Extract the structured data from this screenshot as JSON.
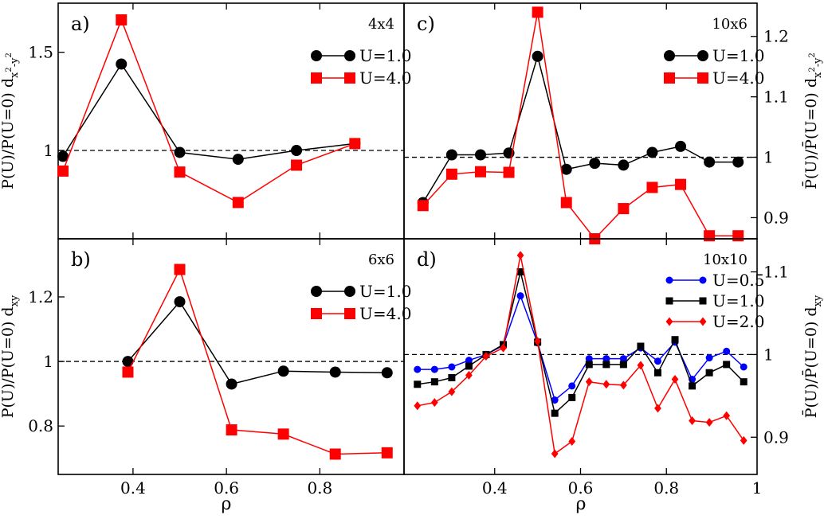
{
  "colors": {
    "black": "#000000",
    "red": "#ff0000",
    "blue": "#0000ff"
  },
  "x_axis_label": "ρ",
  "chart_data": [
    {
      "panel": "a)",
      "type": "line",
      "size_label": "4x4",
      "ylabel": "P̄(U)/P̄(U=0) d",
      "ylabel_sub": "x",
      "ylabel_sub_sup": "2",
      "ylabel_sub_tail": "-y",
      "ylabel_sup": "2",
      "xlim": [
        0.25,
        0.97
      ],
      "ylim": [
        0.55,
        1.75
      ],
      "y_ticks": [
        1.0,
        1.5
      ],
      "y_tick_labels": [
        "1",
        "1.5"
      ],
      "y_axis_side": "left",
      "reference_line": 1.0,
      "legend_position": "top-right",
      "series": [
        {
          "name": "U=1.0",
          "color": "black",
          "marker": "circle",
          "x": [
            0.25,
            0.375,
            0.5,
            0.625,
            0.75,
            0.875
          ],
          "y": [
            0.97,
            1.44,
            0.99,
            0.955,
            1.0,
            1.035
          ]
        },
        {
          "name": "U=4.0",
          "color": "red",
          "marker": "square",
          "x": [
            0.25,
            0.375,
            0.5,
            0.625,
            0.75,
            0.875
          ],
          "y": [
            0.895,
            1.665,
            0.89,
            0.735,
            0.925,
            1.035
          ]
        }
      ]
    },
    {
      "panel": "b)",
      "type": "line",
      "size_label": "6x6",
      "ylabel": "P̄(U)/P̄(U=0) d",
      "ylabel_sub": "xy",
      "xlim": [
        0.25,
        0.97
      ],
      "ylim": [
        0.65,
        1.38
      ],
      "y_ticks": [
        0.8,
        1.0,
        1.2
      ],
      "y_tick_labels": [
        "0.8",
        "1",
        "1.2"
      ],
      "x_ticks": [
        0.4,
        0.6,
        0.8
      ],
      "x_tick_labels": [
        "0.4",
        "0.6",
        "0.8"
      ],
      "y_axis_side": "left",
      "reference_line": 1.0,
      "legend_position": "top-right",
      "series": [
        {
          "name": "U=1.0",
          "color": "black",
          "marker": "circle",
          "x": [
            0.389,
            0.5,
            0.611,
            0.722,
            0.833,
            0.944
          ],
          "y": [
            1.0,
            1.185,
            0.93,
            0.97,
            0.967,
            0.965
          ]
        },
        {
          "name": "U=4.0",
          "color": "red",
          "marker": "square",
          "x": [
            0.389,
            0.5,
            0.611,
            0.722,
            0.833,
            0.944
          ],
          "y": [
            0.967,
            1.285,
            0.788,
            0.775,
            0.713,
            0.717
          ]
        }
      ]
    },
    {
      "panel": "c)",
      "type": "line",
      "size_label": "10x6",
      "ylabel": "P̄(U)/P̄(U=0) d",
      "ylabel_sub": "x",
      "ylabel_sub_sup": "2",
      "ylabel_sub_tail": "-y",
      "ylabel_sup": "2",
      "xlim": [
        0.2,
        1.0
      ],
      "ylim": [
        0.865,
        1.255
      ],
      "y_ticks": [
        0.9,
        1.0,
        1.1,
        1.2
      ],
      "y_tick_labels": [
        "0.9",
        "1",
        "1.1",
        "1.2"
      ],
      "y_axis_side": "right",
      "reference_line": 1.0,
      "legend_position": "top-right",
      "series": [
        {
          "name": "U=1.0",
          "color": "black",
          "marker": "circle",
          "x": [
            0.233,
            0.3,
            0.367,
            0.433,
            0.5,
            0.567,
            0.633,
            0.7,
            0.767,
            0.833,
            0.9,
            0.967
          ],
          "y": [
            0.925,
            1.004,
            1.004,
            1.007,
            1.167,
            0.98,
            0.99,
            0.987,
            1.008,
            1.018,
            0.992,
            0.992
          ]
        },
        {
          "name": "U=4.0",
          "color": "red",
          "marker": "square",
          "x": [
            0.233,
            0.3,
            0.367,
            0.433,
            0.5,
            0.567,
            0.633,
            0.7,
            0.767,
            0.833,
            0.9,
            0.967
          ],
          "y": [
            0.92,
            0.972,
            0.976,
            0.975,
            1.24,
            0.925,
            0.865,
            0.915,
            0.95,
            0.955,
            0.87,
            0.87
          ]
        }
      ]
    },
    {
      "panel": "d)",
      "type": "line",
      "size_label": "10x10",
      "ylabel": "P̄(U)/P̄(U=0) d",
      "ylabel_sub": "xy",
      "xlim": [
        0.2,
        1.0
      ],
      "ylim": [
        0.855,
        1.14
      ],
      "y_ticks": [
        0.9,
        1.0,
        1.1
      ],
      "y_tick_labels": [
        "0.9",
        "1",
        "1.1"
      ],
      "x_ticks": [
        0.4,
        0.6,
        0.8,
        1.0
      ],
      "x_tick_labels": [
        "0.4",
        "0.6",
        "0.8",
        "1"
      ],
      "y_axis_side": "right",
      "reference_line": 1.0,
      "legend_position": "top-right",
      "series": [
        {
          "name": "U=0.5",
          "color": "blue",
          "marker": "circle",
          "x": [
            0.22,
            0.26,
            0.3,
            0.34,
            0.38,
            0.42,
            0.46,
            0.5,
            0.54,
            0.58,
            0.62,
            0.66,
            0.7,
            0.74,
            0.78,
            0.82,
            0.86,
            0.9,
            0.94,
            0.98
          ],
          "y": [
            0.982,
            0.982,
            0.985,
            0.993,
            1.0,
            1.011,
            1.071,
            1.014,
            0.945,
            0.962,
            0.995,
            0.995,
            0.995,
            1.008,
            0.992,
            1.015,
            0.97,
            0.996,
            1.004,
            0.985
          ]
        },
        {
          "name": "U=1.0",
          "color": "black",
          "marker": "square",
          "x": [
            0.22,
            0.26,
            0.3,
            0.34,
            0.38,
            0.42,
            0.46,
            0.5,
            0.54,
            0.58,
            0.62,
            0.66,
            0.7,
            0.74,
            0.78,
            0.82,
            0.86,
            0.9,
            0.94,
            0.98
          ],
          "y": [
            0.964,
            0.967,
            0.972,
            0.986,
            1.0,
            1.012,
            1.1,
            1.015,
            0.929,
            0.948,
            0.988,
            0.988,
            0.988,
            1.01,
            0.978,
            1.018,
            0.962,
            0.978,
            0.988,
            0.967
          ]
        },
        {
          "name": "U=2.0",
          "color": "red",
          "marker": "diamond",
          "x": [
            0.22,
            0.26,
            0.3,
            0.34,
            0.38,
            0.42,
            0.46,
            0.5,
            0.54,
            0.58,
            0.62,
            0.66,
            0.7,
            0.74,
            0.78,
            0.82,
            0.86,
            0.9,
            0.94,
            0.98
          ],
          "y": [
            0.938,
            0.942,
            0.955,
            0.975,
            0.998,
            1.008,
            1.12,
            1.016,
            0.88,
            0.895,
            0.967,
            0.964,
            0.963,
            0.987,
            0.935,
            0.97,
            0.92,
            0.918,
            0.926,
            0.896
          ]
        }
      ]
    }
  ]
}
